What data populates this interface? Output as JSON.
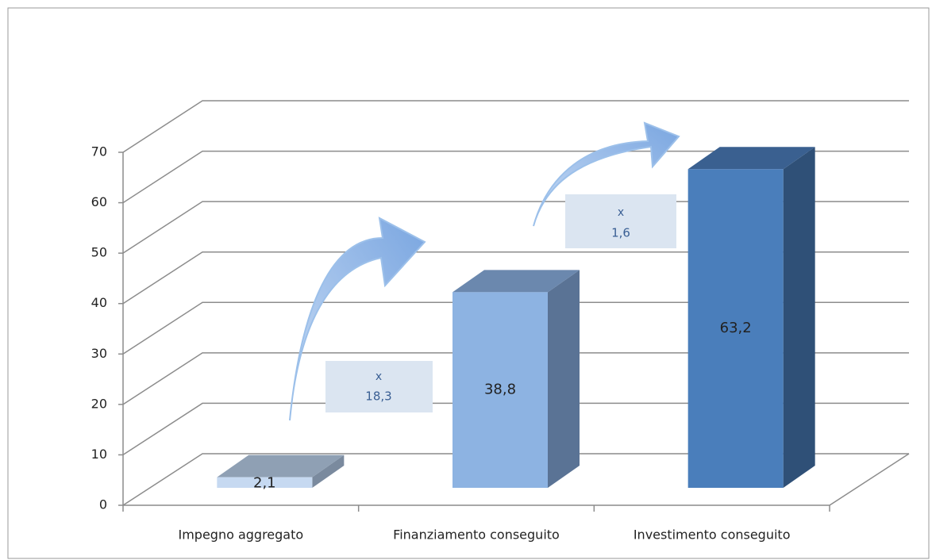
{
  "chart_data": {
    "type": "bar3d",
    "categories": [
      "Impegno aggregato",
      "Finanziamento conseguito",
      "Investimento conseguito"
    ],
    "values": [
      2.1,
      38.8,
      63.2
    ],
    "value_labels": [
      "2,1",
      "38,8",
      "63,2"
    ],
    "colors": [
      "#c6d9f1",
      "#8db3e2",
      "#4a7ebb"
    ],
    "top_colors": [
      "#8fa0b4",
      "#6b88ae",
      "#3a6090"
    ],
    "side_colors": [
      "#7a8a9e",
      "#5a7395",
      "#2f5077"
    ],
    "ylim": [
      0,
      70
    ],
    "yticks": [
      0,
      10,
      20,
      30,
      40,
      50,
      60,
      70
    ],
    "grid": true,
    "annotations": [
      {
        "lines": [
          "x",
          "18,3"
        ]
      },
      {
        "lines": [
          "x",
          "1,6"
        ]
      }
    ]
  }
}
